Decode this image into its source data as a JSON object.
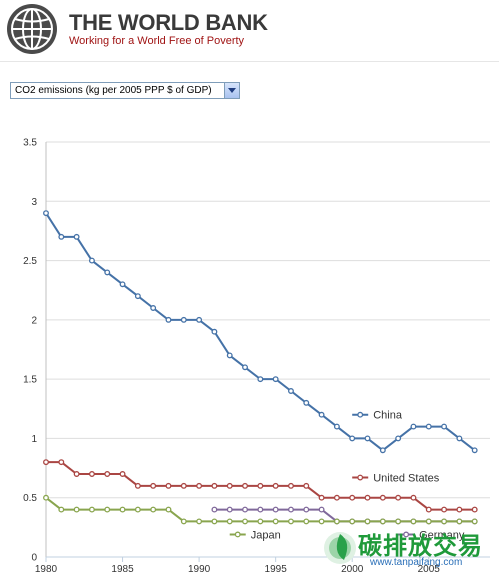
{
  "header": {
    "title": "THE WORLD BANK",
    "tagline": "Working for a World Free of Poverty",
    "logo_icon": "globe-icon"
  },
  "indicator_select": {
    "value": "CO2 emissions (kg per 2005 PPP $ of GDP)",
    "dropdown_icon": "chevron-down-icon"
  },
  "watermark": {
    "chinese": "碳排放交易",
    "url": "www.tanpaifang.com"
  },
  "chart_data": {
    "type": "line",
    "title": "",
    "xlabel": "",
    "ylabel": "",
    "xlim": [
      1980,
      2009
    ],
    "ylim": [
      0,
      3.5
    ],
    "x_ticks": [
      "1980",
      "1985",
      "1990",
      "1995",
      "2000",
      "2005"
    ],
    "y_ticks": [
      "0",
      "0.5",
      "1",
      "1.5",
      "2",
      "2.5",
      "3",
      "3.5"
    ],
    "grid": "horizontal",
    "legend": "inline labels",
    "series": [
      {
        "name": "China",
        "color": "#4572a7",
        "x": [
          1980,
          1981,
          1982,
          1983,
          1984,
          1985,
          1986,
          1987,
          1988,
          1989,
          1990,
          1991,
          1992,
          1993,
          1994,
          1995,
          1996,
          1997,
          1998,
          1999,
          2000,
          2001,
          2002,
          2003,
          2004,
          2005,
          2006,
          2007,
          2008
        ],
        "y": [
          2.9,
          2.7,
          2.7,
          2.5,
          2.4,
          2.3,
          2.2,
          2.1,
          2.0,
          2.0,
          2.0,
          1.9,
          1.7,
          1.6,
          1.5,
          1.5,
          1.4,
          1.3,
          1.2,
          1.1,
          1.0,
          1.0,
          0.9,
          1.0,
          1.1,
          1.1,
          1.1,
          1.0,
          0.9
        ]
      },
      {
        "name": "United States",
        "color": "#aa4643",
        "x": [
          1980,
          1981,
          1982,
          1983,
          1984,
          1985,
          1986,
          1987,
          1988,
          1989,
          1990,
          1991,
          1992,
          1993,
          1994,
          1995,
          1996,
          1997,
          1998,
          1999,
          2000,
          2001,
          2002,
          2003,
          2004,
          2005,
          2006,
          2007,
          2008
        ],
        "y": [
          0.8,
          0.8,
          0.7,
          0.7,
          0.7,
          0.7,
          0.6,
          0.6,
          0.6,
          0.6,
          0.6,
          0.6,
          0.6,
          0.6,
          0.6,
          0.6,
          0.6,
          0.6,
          0.5,
          0.5,
          0.5,
          0.5,
          0.5,
          0.5,
          0.5,
          0.4,
          0.4,
          0.4,
          0.4
        ]
      },
      {
        "name": "Germany",
        "color": "#80699b",
        "x": [
          1991,
          1992,
          1993,
          1994,
          1995,
          1996,
          1997,
          1998,
          1999,
          2000,
          2001,
          2002,
          2003,
          2004,
          2005,
          2006,
          2007,
          2008
        ],
        "y": [
          0.4,
          0.4,
          0.4,
          0.4,
          0.4,
          0.4,
          0.4,
          0.4,
          0.3,
          0.3,
          0.3,
          0.3,
          0.3,
          0.3,
          0.3,
          0.3,
          0.3,
          0.3
        ]
      },
      {
        "name": "Japan",
        "color": "#89a54e",
        "x": [
          1980,
          1981,
          1982,
          1983,
          1984,
          1985,
          1986,
          1987,
          1988,
          1989,
          1990,
          1991,
          1992,
          1993,
          1994,
          1995,
          1996,
          1997,
          1998,
          1999,
          2000,
          2001,
          2002,
          2003,
          2004,
          2005,
          2006,
          2007,
          2008
        ],
        "y": [
          0.5,
          0.4,
          0.4,
          0.4,
          0.4,
          0.4,
          0.4,
          0.4,
          0.4,
          0.3,
          0.3,
          0.3,
          0.3,
          0.3,
          0.3,
          0.3,
          0.3,
          0.3,
          0.3,
          0.3,
          0.3,
          0.3,
          0.3,
          0.3,
          0.3,
          0.3,
          0.3,
          0.3,
          0.3
        ]
      }
    ],
    "legend_labels": [
      {
        "series": "China",
        "text": "China",
        "anchor": [
          2000,
          1.2
        ]
      },
      {
        "series": "United States",
        "text": "United States",
        "anchor": [
          2000,
          0.67
        ]
      },
      {
        "series": "Japan",
        "text": "Japan",
        "anchor": [
          1992,
          0.19
        ]
      },
      {
        "series": "Germany",
        "text": "Germany",
        "anchor": [
          2003,
          0.19
        ]
      }
    ]
  }
}
